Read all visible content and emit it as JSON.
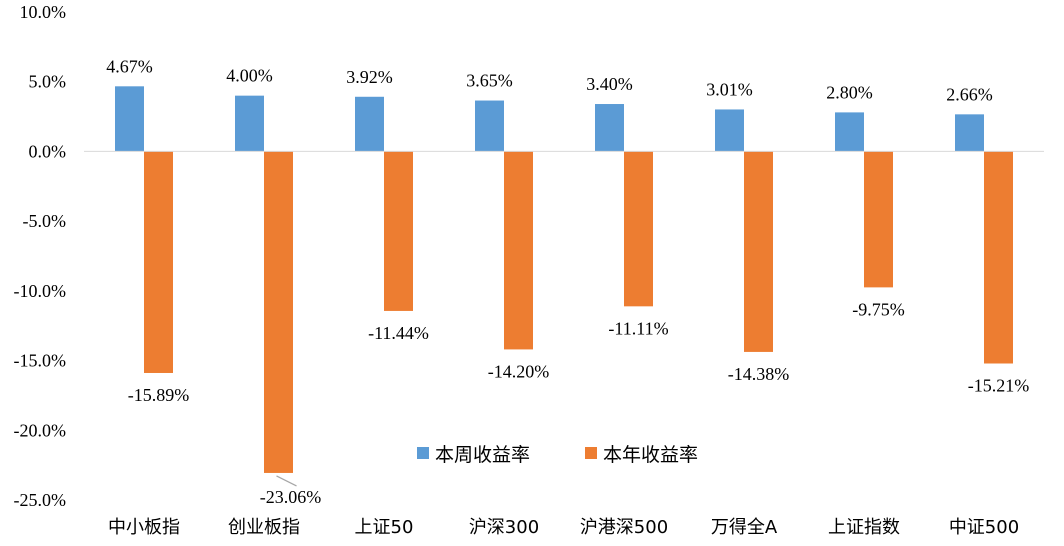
{
  "chart_data": {
    "type": "bar",
    "categories": [
      "中小板指",
      "创业板指",
      "上证50",
      "沪深300",
      "沪港深500",
      "万得全A",
      "上证指数",
      "中证500"
    ],
    "series": [
      {
        "name": "本周收益率",
        "values": [
          4.67,
          4.0,
          3.92,
          3.65,
          3.4,
          3.01,
          2.8,
          2.66
        ],
        "labels": [
          "4.67%",
          "4.00%",
          "3.92%",
          "3.65%",
          "3.40%",
          "3.01%",
          "2.80%",
          "2.66%"
        ],
        "color": "#5B9BD5"
      },
      {
        "name": "本年收益率",
        "values": [
          -15.89,
          -23.06,
          -11.44,
          -14.2,
          -11.11,
          -14.38,
          -9.75,
          -15.21
        ],
        "labels": [
          "-15.89%",
          "-23.06%",
          "-11.44%",
          "-14.20%",
          "-11.11%",
          "-14.38%",
          "-9.75%",
          "-15.21%"
        ],
        "color": "#ED7D31"
      }
    ],
    "yticks": [
      10,
      5,
      0,
      -5,
      -10,
      -15,
      -20,
      -25
    ],
    "ytick_labels": [
      "10.0%",
      "5.0%",
      "0.0%",
      "-5.0%",
      "-10.0%",
      "-15.0%",
      "-20.0%",
      "-25.0%"
    ],
    "ylim": [
      -25,
      10
    ],
    "legend_position": "inside-lower-center",
    "grid": false
  }
}
